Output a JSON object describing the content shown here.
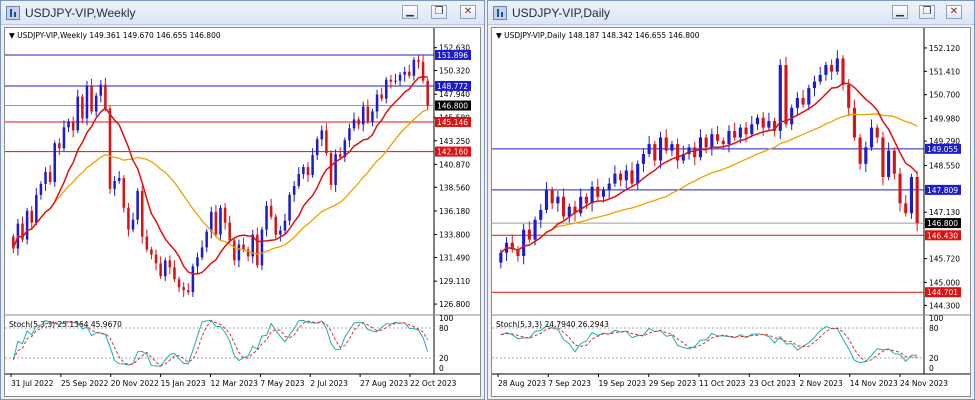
{
  "weekly": {
    "window_title": "USDJPY-VIP,Weekly",
    "header": "USDJPY-VIP,Weekly  149.361 149.670 146.655 146.800",
    "y_ticks": [
      "152.630",
      "150.320",
      "147.940",
      "145.580",
      "143.250",
      "140.870",
      "138.560",
      "136.180",
      "133.800",
      "131.490",
      "129.110",
      "126.800"
    ],
    "x_ticks": [
      "31 Jul 2022",
      "25 Sep 2022",
      "20 Nov 2022",
      "15 Jan 2023",
      "12 Mar 2023",
      "7 May 2023",
      "2 Jul 2023",
      "27 Aug 2023",
      "22 Oct 2023"
    ],
    "price_labels": [
      {
        "text": "151.896",
        "bg": "#1c1cd0",
        "fg": "#ffffff"
      },
      {
        "text": "148.772",
        "bg": "#1c1cd0",
        "fg": "#ffffff"
      },
      {
        "text": "146.800",
        "bg": "#000000",
        "fg": "#ffffff"
      },
      {
        "text": "145.146",
        "bg": "#e01010",
        "fg": "#ffffff"
      },
      {
        "text": "142.160",
        "bg": "#e01010",
        "fg": "#ffffff"
      }
    ],
    "stoch_label": "Stoch(5,3,3) 25.1364 45.9670",
    "stoch_ticks": [
      "100",
      "80",
      "20",
      "0"
    ]
  },
  "daily": {
    "window_title": "USDJPY-VIP,Daily",
    "header": "USDJPY-VIP,Daily  148.187 148.342 146.655 146.800",
    "y_ticks": [
      "152.120",
      "151.410",
      "150.700",
      "149.980",
      "149.290",
      "148.550",
      "147.130",
      "145.720",
      "145.000",
      "144.300"
    ],
    "x_ticks": [
      "28 Aug 2023",
      "7 Sep 2023",
      "19 Sep 2023",
      "29 Sep 2023",
      "11 Oct 2023",
      "23 Oct 2023",
      "2 Nov 2023",
      "14 Nov 2023",
      "24 Nov 2023"
    ],
    "price_labels": [
      {
        "text": "149.055",
        "bg": "#1c1cd0",
        "fg": "#ffffff"
      },
      {
        "text": "147.809",
        "bg": "#1c1cd0",
        "fg": "#ffffff"
      },
      {
        "text": "146.800",
        "bg": "#000000",
        "fg": "#ffffff"
      },
      {
        "text": "146.430",
        "bg": "#e01010",
        "fg": "#ffffff"
      },
      {
        "text": "144.701",
        "bg": "#e01010",
        "fg": "#ffffff"
      }
    ],
    "stoch_label": "Stoch(5,3,3) 24.7940 26.2943",
    "stoch_ticks": [
      "100",
      "80",
      "20",
      "0"
    ]
  },
  "colors": {
    "bull": "#1c1ccf",
    "bear": "#d61414",
    "ma_fast": "#e01010",
    "ma_slow": "#f0a000",
    "stoch_main": "#1ab0b0",
    "stoch_signal": "#e03030",
    "res_line": "#1c1cd0",
    "sup_line": "#e01010"
  },
  "icons": {
    "window": "chart-window-icon",
    "minimize": "minimize-icon",
    "restore": "restore-icon",
    "close": "close-icon"
  },
  "chart_data": [
    {
      "type": "candlestick",
      "title": "USDJPY-VIP,Weekly",
      "ylim": [
        126.0,
        153.2
      ],
      "open": [
        133.6,
        132.4,
        134.9,
        133.3,
        136.2,
        135.0,
        137.8,
        138.9,
        140.1,
        139.1,
        143.0,
        142.5,
        144.6,
        145.2,
        144.3,
        147.7,
        145.5,
        148.8,
        146.2,
        147.8,
        148.9,
        146.5,
        138.4,
        139.2,
        139.5,
        136.5,
        134.3,
        135.3,
        138.2,
        133.6,
        132.3,
        131.8,
        130.9,
        129.6,
        131.2,
        130.5,
        129.3,
        128.5,
        128.2,
        128.0,
        130.6,
        131.5,
        132.5,
        134.1,
        136.1,
        133.8,
        136.5,
        135.0,
        133.2,
        131.2,
        132.8,
        132.3,
        131.6,
        133.8,
        130.7,
        134.3,
        136.7,
        135.6,
        133.8,
        134.2,
        135.2,
        137.8,
        138.7,
        139.9,
        140.6,
        139.8,
        141.8,
        143.4,
        144.3,
        142.0,
        138.8,
        141.9,
        141.6,
        143.3,
        144.5,
        145.4,
        144.9,
        146.7,
        145.2,
        146.2,
        147.9,
        147.5,
        149.4,
        149.2,
        149.3,
        149.9,
        150.2,
        149.8,
        151.4,
        151.2,
        149.3
      ],
      "close": [
        132.4,
        134.9,
        133.3,
        136.2,
        135.0,
        137.8,
        138.9,
        140.1,
        139.1,
        143.0,
        142.5,
        144.6,
        145.2,
        144.3,
        147.7,
        145.5,
        148.8,
        146.2,
        147.8,
        148.9,
        146.5,
        138.4,
        139.2,
        139.5,
        136.5,
        134.3,
        135.3,
        138.2,
        133.6,
        132.3,
        131.8,
        130.9,
        129.6,
        131.2,
        130.5,
        129.3,
        128.5,
        128.2,
        128.0,
        130.6,
        131.5,
        132.5,
        134.1,
        136.1,
        133.8,
        136.5,
        135.0,
        133.2,
        131.2,
        132.8,
        132.3,
        131.6,
        133.8,
        130.7,
        134.3,
        136.7,
        135.6,
        133.8,
        134.2,
        135.2,
        137.8,
        138.7,
        139.9,
        140.6,
        139.8,
        141.8,
        143.4,
        144.3,
        142.0,
        138.8,
        141.9,
        141.6,
        143.3,
        144.5,
        145.4,
        144.9,
        146.7,
        145.2,
        146.2,
        147.9,
        147.5,
        149.4,
        149.2,
        149.3,
        149.9,
        150.2,
        149.8,
        151.4,
        151.2,
        149.3,
        146.8
      ]
    },
    {
      "type": "candlestick",
      "title": "USDJPY-VIP,Daily",
      "ylim": [
        144.1,
        152.3
      ],
      "open": [
        145.6,
        145.9,
        146.2,
        146.0,
        145.8,
        146.6,
        146.3,
        146.9,
        147.2,
        147.8,
        147.4,
        147.6,
        147.0,
        147.3,
        147.1,
        147.6,
        147.4,
        147.9,
        147.6,
        147.8,
        148.0,
        148.3,
        148.1,
        148.4,
        148.0,
        148.6,
        148.9,
        149.2,
        148.7,
        149.4,
        149.0,
        149.2,
        148.7,
        148.9,
        149.1,
        148.8,
        149.4,
        149.1,
        149.5,
        149.3,
        149.2,
        149.6,
        149.4,
        149.7,
        149.5,
        149.8,
        150.0,
        149.7,
        149.9,
        149.6,
        151.6,
        149.8,
        150.3,
        150.6,
        150.4,
        150.9,
        151.1,
        151.3,
        151.6,
        151.4,
        151.8,
        151.0,
        150.3,
        149.4,
        148.6,
        149.1,
        149.7,
        149.4,
        148.2,
        149.0,
        148.3,
        147.4,
        147.1,
        148.2
      ],
      "close": [
        145.9,
        146.2,
        146.0,
        145.8,
        146.6,
        146.3,
        146.9,
        147.2,
        147.8,
        147.4,
        147.6,
        147.0,
        147.3,
        147.1,
        147.6,
        147.4,
        147.9,
        147.6,
        147.8,
        148.0,
        148.3,
        148.1,
        148.4,
        148.0,
        148.6,
        148.9,
        149.2,
        148.7,
        149.4,
        149.0,
        149.2,
        148.7,
        148.9,
        149.1,
        148.8,
        149.4,
        149.1,
        149.5,
        149.3,
        149.2,
        149.6,
        149.4,
        149.7,
        149.5,
        149.8,
        150.0,
        149.7,
        149.9,
        149.6,
        151.6,
        149.8,
        150.3,
        150.6,
        150.4,
        150.9,
        151.1,
        151.3,
        151.6,
        151.4,
        151.8,
        151.0,
        150.3,
        149.4,
        148.6,
        149.1,
        149.7,
        149.4,
        148.2,
        149.0,
        148.3,
        147.4,
        147.1,
        148.2,
        146.8
      ]
    }
  ]
}
